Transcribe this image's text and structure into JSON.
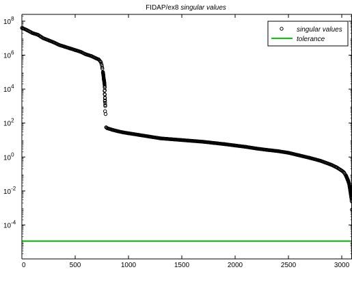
{
  "chart_data": {
    "type": "scatter",
    "title_prefix": "FIDAP/ex8 ",
    "title_suffix": "singular values",
    "xlim": [
      0,
      3096
    ],
    "ylim_log10": [
      -6,
      8.4
    ],
    "x_ticks": [
      "0",
      "500",
      "1000",
      "1500",
      "2000",
      "2500",
      "3000"
    ],
    "x_tick_values": [
      0,
      500,
      1000,
      1500,
      2000,
      2500,
      3000
    ],
    "y_tick_exponents": [
      8,
      6,
      4,
      2,
      0,
      -2,
      -4
    ],
    "y_tick_labels": [
      "8",
      "6",
      "4",
      "2",
      "0",
      "-2",
      "-4"
    ],
    "y_tick_base": "10",
    "legend": {
      "placement": "top-right",
      "entries": [
        {
          "label": "singular values",
          "marker": "circle",
          "color": "#000000"
        },
        {
          "label": "tolerance",
          "marker": "line",
          "color": "#00cc00"
        }
      ]
    },
    "series": [
      {
        "name": "singular values",
        "marker": "circle",
        "color": "#000000",
        "x_step": 8,
        "x": [
          1,
          40,
          100,
          150,
          200,
          260,
          300,
          350,
          400,
          450,
          500,
          550,
          600,
          650,
          700,
          720,
          740,
          750,
          755,
          760,
          765,
          768,
          771,
          773,
          775,
          777,
          779,
          782,
          790,
          800,
          850,
          900,
          950,
          1000,
          1100,
          1200,
          1300,
          1400,
          1500,
          1600,
          1700,
          1800,
          1900,
          2000,
          2100,
          2200,
          2300,
          2400,
          2500,
          2600,
          2700,
          2800,
          2900,
          2950,
          3000,
          3020,
          3040,
          3050,
          3060,
          3070,
          3075,
          3080,
          3085,
          3090,
          3093
        ],
        "y_log10": [
          7.6,
          7.5,
          7.3,
          7.2,
          7.0,
          6.85,
          6.75,
          6.6,
          6.5,
          6.4,
          6.3,
          6.2,
          6.05,
          5.95,
          5.8,
          5.75,
          5.6,
          5.4,
          5.2,
          5.0,
          4.8,
          4.6,
          4.5,
          4.4,
          4.3,
          4.1,
          3.5,
          3.0,
          1.75,
          1.7,
          1.6,
          1.52,
          1.45,
          1.4,
          1.3,
          1.2,
          1.1,
          1.05,
          1.0,
          0.95,
          0.9,
          0.83,
          0.76,
          0.68,
          0.6,
          0.5,
          0.42,
          0.35,
          0.25,
          0.1,
          -0.05,
          -0.22,
          -0.45,
          -0.6,
          -0.8,
          -0.9,
          -1.1,
          -1.25,
          -1.4,
          -1.6,
          -1.8,
          -2.0,
          -2.2,
          -2.4,
          -2.6
        ],
        "isolated_points": [
          {
            "x": 775,
            "y_log10": 3.9
          },
          {
            "x": 776,
            "y_log10": 3.7
          },
          {
            "x": 778,
            "y_log10": 3.3
          },
          {
            "x": 780,
            "y_log10": 2.7
          },
          {
            "x": 3095,
            "y_log10": -3.1
          }
        ]
      },
      {
        "name": "tolerance",
        "marker": "line",
        "color": "#00cc00",
        "y_log10": -4.95
      }
    ]
  }
}
